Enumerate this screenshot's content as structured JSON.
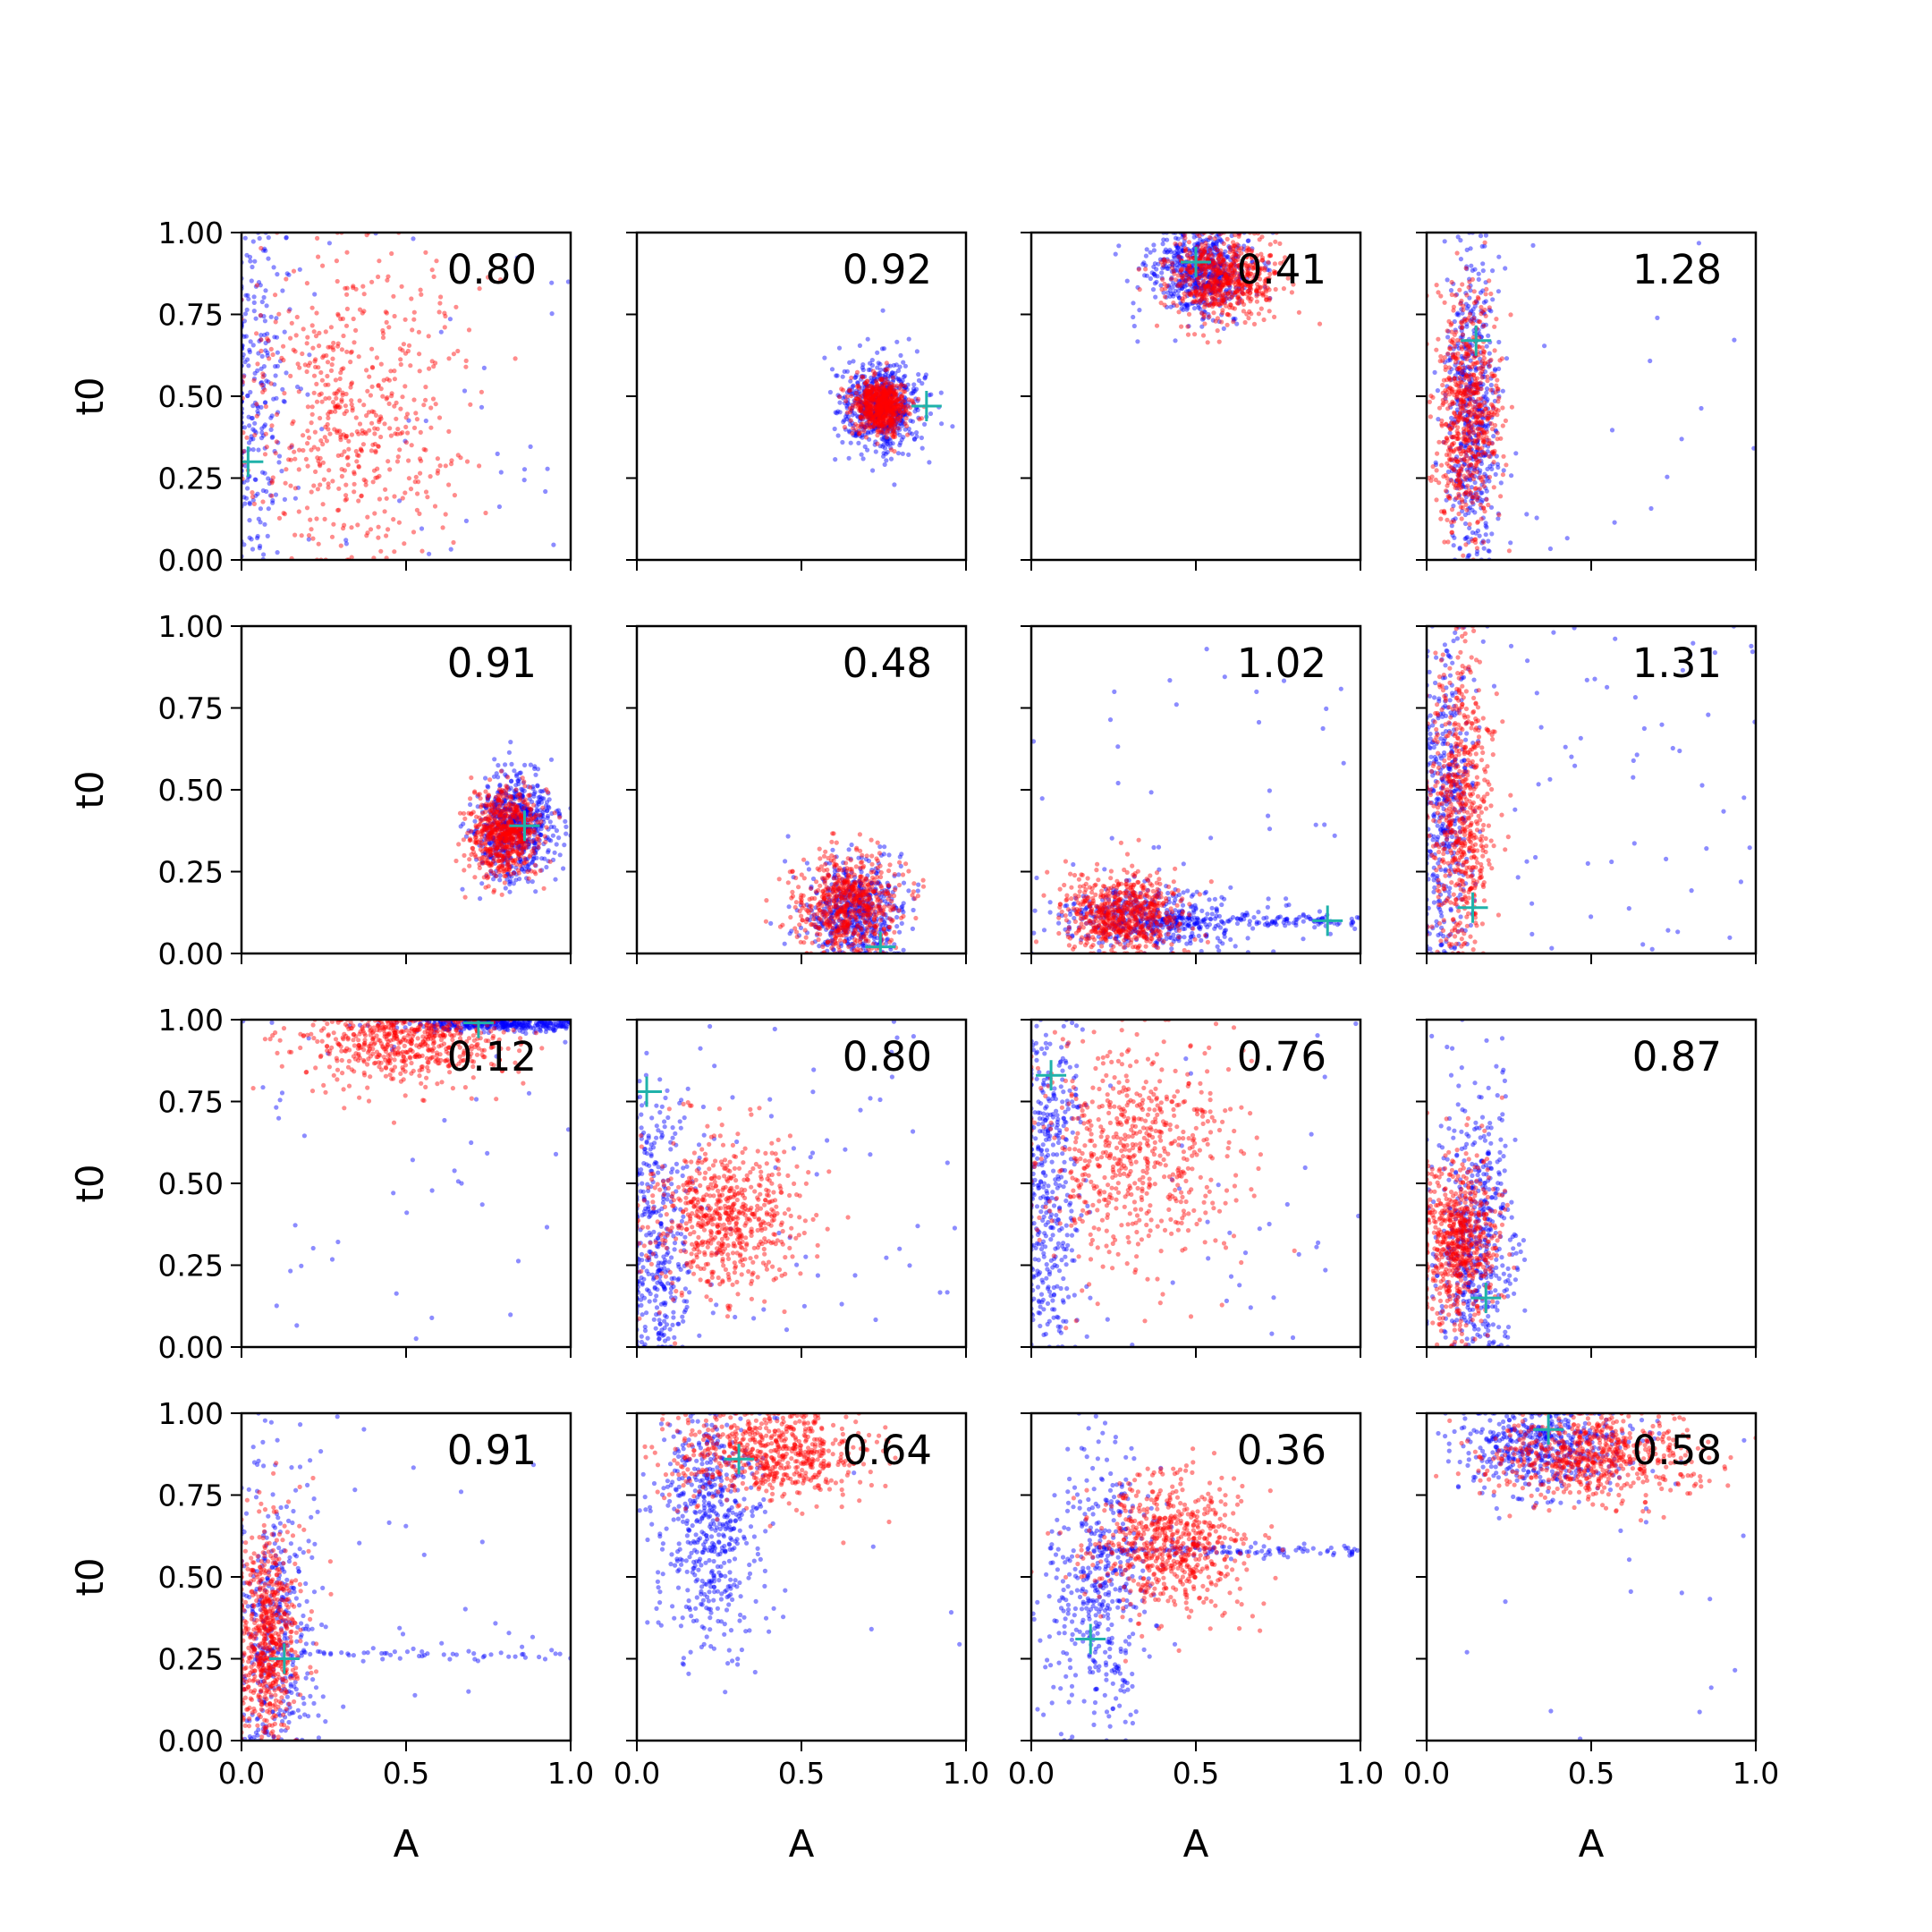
{
  "chart_data": {
    "type": "scatter",
    "grid": false,
    "layout": "4x4 grid of subplots",
    "shared_xlim": [
      0.0,
      1.0
    ],
    "shared_ylim": [
      0.0,
      1.0
    ],
    "xlabel": "A",
    "ylabel": "t0",
    "x_ticks": [
      "0.0",
      "0.5",
      "1.0"
    ],
    "y_ticks": [
      "0.00",
      "0.25",
      "0.50",
      "0.75",
      "1.00"
    ],
    "series_colors": {
      "blue": "#0000ff",
      "red": "#ff0000",
      "marker": "#20b2aa"
    },
    "panels": [
      {
        "label": "0.80",
        "marker": [
          0.02,
          0.3
        ],
        "blue": {
          "cx": 0.03,
          "cy": 0.5,
          "sx": 0.05,
          "sy": 0.32,
          "n": 320,
          "tail": 45,
          "seed": 11
        },
        "red": {
          "cx": 0.33,
          "cy": 0.45,
          "sx": 0.17,
          "sy": 0.24,
          "n": 600,
          "seed": 12
        }
      },
      {
        "label": "0.92",
        "marker": [
          0.88,
          0.47
        ],
        "blue": {
          "cx": 0.74,
          "cy": 0.47,
          "sx": 0.06,
          "sy": 0.07,
          "n": 650,
          "seed": 21
        },
        "red": {
          "cx": 0.74,
          "cy": 0.47,
          "sx": 0.04,
          "sy": 0.04,
          "n": 650,
          "seed": 22
        }
      },
      {
        "label": "0.41",
        "marker": [
          0.5,
          0.91
        ],
        "blue": {
          "cx": 0.52,
          "cy": 0.88,
          "sx": 0.08,
          "sy": 0.07,
          "n": 600,
          "seed": 31
        },
        "red": {
          "cx": 0.58,
          "cy": 0.86,
          "sx": 0.08,
          "sy": 0.06,
          "n": 650,
          "seed": 32
        }
      },
      {
        "label": "1.28",
        "marker": [
          0.15,
          0.67
        ],
        "blue": {
          "cx": 0.14,
          "cy": 0.45,
          "sx": 0.04,
          "sy": 0.27,
          "n": 550,
          "tail": 22,
          "seed": 41
        },
        "red": {
          "cx": 0.12,
          "cy": 0.45,
          "sx": 0.05,
          "sy": 0.18,
          "n": 650,
          "seed": 42
        }
      },
      {
        "label": "0.91",
        "marker": [
          0.86,
          0.39
        ],
        "blue": {
          "cx": 0.83,
          "cy": 0.38,
          "sx": 0.06,
          "sy": 0.08,
          "n": 650,
          "seed": 51
        },
        "red": {
          "cx": 0.8,
          "cy": 0.37,
          "sx": 0.05,
          "sy": 0.07,
          "n": 650,
          "seed": 52
        }
      },
      {
        "label": "0.48",
        "marker": [
          0.74,
          0.02
        ],
        "blue": {
          "cx": 0.66,
          "cy": 0.12,
          "sx": 0.08,
          "sy": 0.08,
          "n": 550,
          "seed": 61
        },
        "red": {
          "cx": 0.64,
          "cy": 0.14,
          "sx": 0.08,
          "sy": 0.08,
          "n": 650,
          "seed": 62
        }
      },
      {
        "label": "1.02",
        "marker": [
          0.9,
          0.1
        ],
        "blue": {
          "cx": 0.35,
          "cy": 0.11,
          "sx": 0.14,
          "sy": 0.05,
          "n": 450,
          "streak_y": 0.1,
          "streak_n": 140,
          "tail": 40,
          "seed": 71
        },
        "red": {
          "cx": 0.28,
          "cy": 0.12,
          "sx": 0.09,
          "sy": 0.06,
          "n": 650,
          "seed": 72
        }
      },
      {
        "label": "1.31",
        "marker": [
          0.14,
          0.14
        ],
        "blue": {
          "cx": 0.06,
          "cy": 0.45,
          "sx": 0.04,
          "sy": 0.3,
          "n": 450,
          "tail": 70,
          "seed": 81
        },
        "red": {
          "cx": 0.1,
          "cy": 0.42,
          "sx": 0.05,
          "sy": 0.24,
          "n": 650,
          "seed": 82
        }
      },
      {
        "label": "0.12",
        "marker": [
          0.72,
          0.99
        ],
        "blue": {
          "cx": 0.78,
          "cy": 0.985,
          "sx": 0.15,
          "sy": 0.01,
          "n": 350,
          "tail": 45,
          "seed": 91
        },
        "red": {
          "cx": 0.5,
          "cy": 0.94,
          "sx": 0.15,
          "sy": 0.07,
          "n": 650,
          "seed": 92
        }
      },
      {
        "label": "0.80",
        "marker": [
          0.03,
          0.78
        ],
        "blue": {
          "cx": 0.05,
          "cy": 0.3,
          "sx": 0.06,
          "sy": 0.26,
          "n": 450,
          "tail": 70,
          "seed": 101
        },
        "red": {
          "cx": 0.26,
          "cy": 0.39,
          "sx": 0.12,
          "sy": 0.12,
          "n": 650,
          "seed": 102
        }
      },
      {
        "label": "0.76",
        "marker": [
          0.06,
          0.83
        ],
        "blue": {
          "cx": 0.05,
          "cy": 0.5,
          "sx": 0.05,
          "sy": 0.3,
          "n": 450,
          "tail": 45,
          "seed": 111
        },
        "red": {
          "cx": 0.3,
          "cy": 0.6,
          "sx": 0.16,
          "sy": 0.18,
          "n": 650,
          "seed": 112
        }
      },
      {
        "label": "0.87",
        "marker": [
          0.18,
          0.15
        ],
        "blue": {
          "cx": 0.15,
          "cy": 0.32,
          "sx": 0.06,
          "sy": 0.24,
          "n": 550,
          "seed": 121
        },
        "red": {
          "cx": 0.1,
          "cy": 0.32,
          "sx": 0.06,
          "sy": 0.13,
          "n": 650,
          "seed": 122
        }
      },
      {
        "label": "0.91",
        "marker": [
          0.13,
          0.25
        ],
        "blue": {
          "cx": 0.1,
          "cy": 0.3,
          "sx": 0.06,
          "sy": 0.28,
          "n": 450,
          "streak_y": 0.26,
          "streak_n": 60,
          "tail": 30,
          "seed": 131
        },
        "red": {
          "cx": 0.08,
          "cy": 0.32,
          "sx": 0.05,
          "sy": 0.16,
          "n": 650,
          "seed": 132
        }
      },
      {
        "label": "0.64",
        "marker": [
          0.31,
          0.86
        ],
        "blue": {
          "cx": 0.22,
          "cy": 0.68,
          "sx": 0.08,
          "sy": 0.2,
          "n": 550,
          "tail": 10,
          "seed": 141
        },
        "red": {
          "cx": 0.4,
          "cy": 0.88,
          "sx": 0.14,
          "sy": 0.07,
          "n": 650,
          "seed": 142
        }
      },
      {
        "label": "0.36",
        "marker": [
          0.18,
          0.31
        ],
        "blue": {
          "cx": 0.2,
          "cy": 0.48,
          "sx": 0.08,
          "sy": 0.22,
          "n": 450,
          "streak_y": 0.58,
          "streak_n": 120,
          "seed": 151
        },
        "red": {
          "cx": 0.42,
          "cy": 0.6,
          "sx": 0.12,
          "sy": 0.1,
          "n": 650,
          "seed": 152
        }
      },
      {
        "label": "0.58",
        "marker": [
          0.37,
          0.95
        ],
        "blue": {
          "cx": 0.35,
          "cy": 0.9,
          "sx": 0.14,
          "sy": 0.07,
          "n": 500,
          "tail": 20,
          "seed": 161
        },
        "red": {
          "cx": 0.5,
          "cy": 0.87,
          "sx": 0.16,
          "sy": 0.07,
          "n": 650,
          "seed": 162
        }
      }
    ]
  }
}
